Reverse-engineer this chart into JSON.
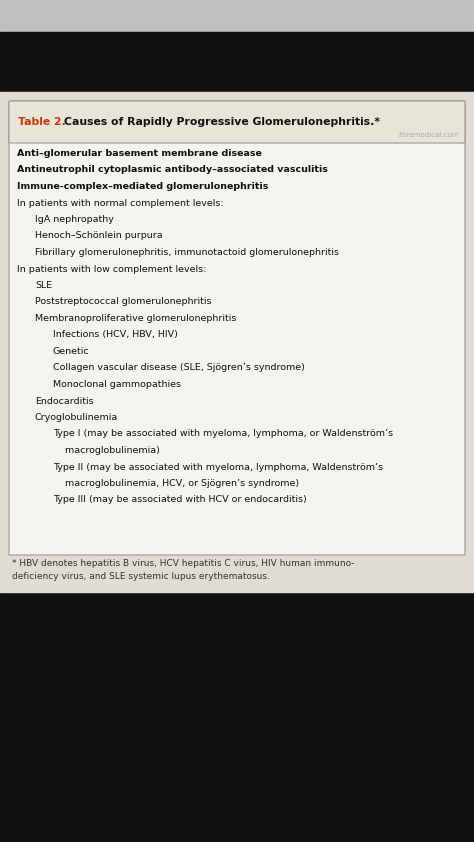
{
  "status_bar_bg": "#c0bebe",
  "top_black_bg": "#111111",
  "page_bg": "#e0dcd2",
  "table_bg": "#f5f3ee",
  "table_title_bg": "#e8e4d8",
  "table_border": "#999999",
  "title_prefix": "Table 2. ",
  "title_prefix_color": "#cc3300",
  "title_text": "Causes of Rapidly Progressive Glomerulonephritis.",
  "title_asterisk": "*",
  "title_color": "#111111",
  "watermark": "libremedical.com",
  "watermark_color": "#aaaaaa",
  "footnote_line1": "* HBV denotes hepatitis B virus, HCV hepatitis C virus, HIV human immuno-",
  "footnote_line2": "deficiency virus, and SLE systemic lupus erythematosus.",
  "footnote_color": "#333333",
  "bottom_black_bg": "#111111",
  "lines": [
    {
      "text": "Anti–glomerular basement membrane disease",
      "indent": 0,
      "bold": true
    },
    {
      "text": "Antineutrophil cytoplasmic antibody–associated vasculitis",
      "indent": 0,
      "bold": true
    },
    {
      "text": "Immune-complex–mediated glomerulonephritis",
      "indent": 0,
      "bold": true
    },
    {
      "text": "In patients with normal complement levels:",
      "indent": 0,
      "bold": false
    },
    {
      "text": "IgA nephropathy",
      "indent": 1,
      "bold": false
    },
    {
      "text": "Henoch–Schönlein purpura",
      "indent": 1,
      "bold": false
    },
    {
      "text": "Fibrillary glomerulonephritis, immunotactoid glomerulonephritis",
      "indent": 1,
      "bold": false
    },
    {
      "text": "In patients with low complement levels:",
      "indent": 0,
      "bold": false
    },
    {
      "text": "SLE",
      "indent": 1,
      "bold": false
    },
    {
      "text": "Poststreptococcal glomerulonephritis",
      "indent": 1,
      "bold": false
    },
    {
      "text": "Membranoproliferative glomerulonephritis",
      "indent": 1,
      "bold": false
    },
    {
      "text": "Infections (HCV, HBV, HIV)",
      "indent": 2,
      "bold": false
    },
    {
      "text": "Genetic",
      "indent": 2,
      "bold": false
    },
    {
      "text": "Collagen vascular disease (SLE, Sjögren’s syndrome)",
      "indent": 2,
      "bold": false
    },
    {
      "text": "Monoclonal gammopathies",
      "indent": 2,
      "bold": false
    },
    {
      "text": "Endocarditis",
      "indent": 1,
      "bold": false
    },
    {
      "text": "Cryoglobulinemia",
      "indent": 1,
      "bold": false
    },
    {
      "text": "Type I (may be associated with myeloma, lymphoma, or Waldenström’s",
      "indent": 2,
      "bold": false
    },
    {
      "text": "    macroglobulinemia)",
      "indent": 2,
      "bold": false
    },
    {
      "text": "Type II (may be associated with myeloma, lymphoma, Waldenström’s",
      "indent": 2,
      "bold": false
    },
    {
      "text": "    macroglobulinemia, HCV, or Sjögren’s syndrome)",
      "indent": 2,
      "bold": false
    },
    {
      "text": "Type III (may be associated with HCV or endocarditis)",
      "indent": 2,
      "bold": false
    }
  ]
}
